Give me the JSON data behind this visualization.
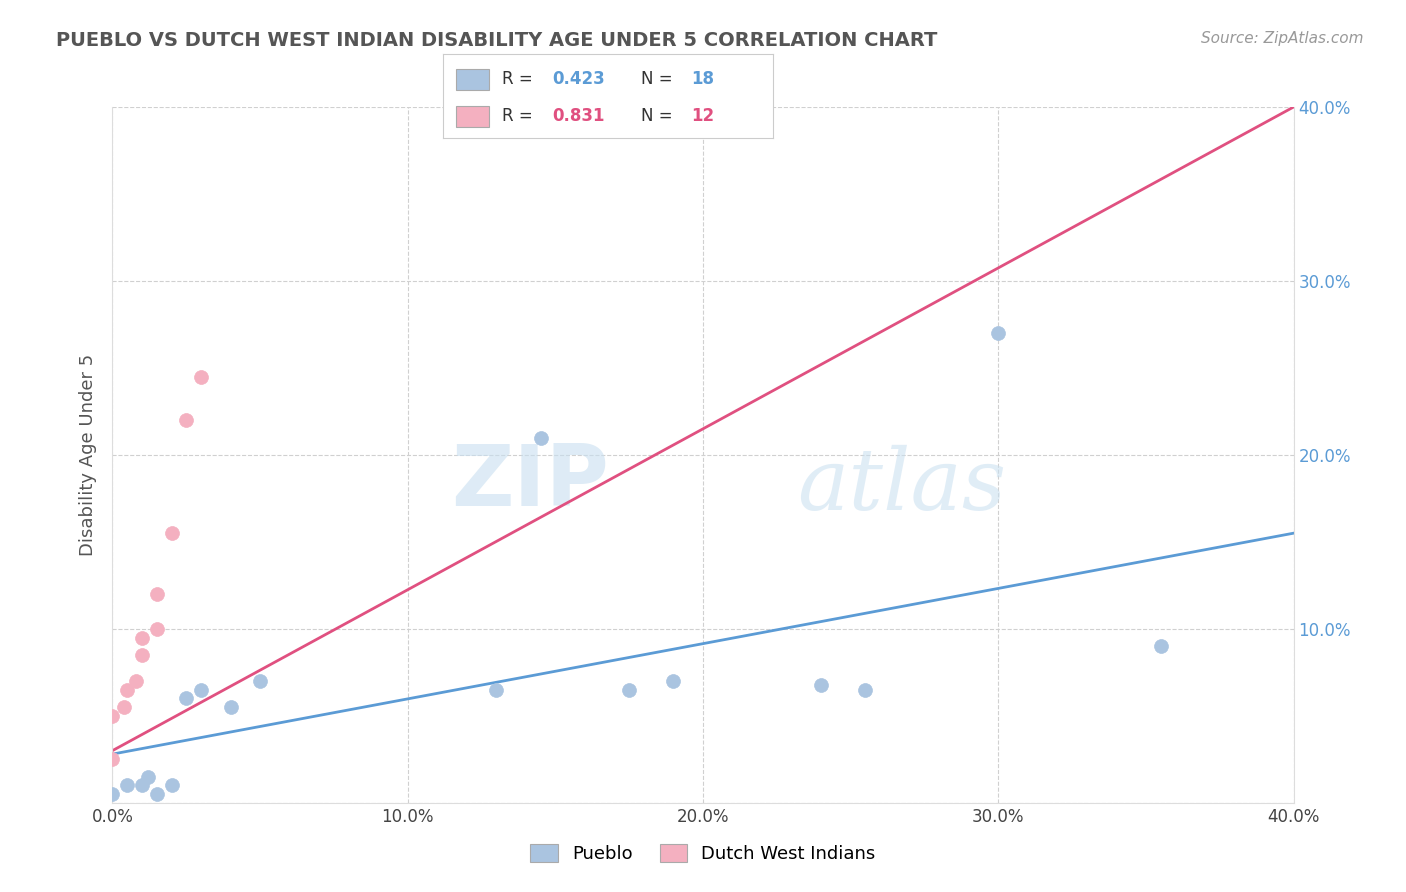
{
  "title": "PUEBLO VS DUTCH WEST INDIAN DISABILITY AGE UNDER 5 CORRELATION CHART",
  "source_text": "Source: ZipAtlas.com",
  "ylabel": "Disability Age Under 5",
  "xlim": [
    0.0,
    0.4
  ],
  "ylim": [
    0.0,
    0.4
  ],
  "xtick_values": [
    0.0,
    0.1,
    0.2,
    0.3,
    0.4
  ],
  "xtick_labels": [
    "0.0%",
    "10.0%",
    "20.0%",
    "30.0%",
    "40.0%"
  ],
  "ytick_values": [
    0.0,
    0.1,
    0.2,
    0.3,
    0.4
  ],
  "ytick_labels": [
    "",
    "",
    "",
    "",
    ""
  ],
  "right_ytick_values": [
    0.1,
    0.2,
    0.3,
    0.4
  ],
  "right_ytick_labels": [
    "10.0%",
    "20.0%",
    "30.0%",
    "40.0%"
  ],
  "pueblo_scatter_x": [
    0.0,
    0.005,
    0.01,
    0.012,
    0.015,
    0.02,
    0.025,
    0.03,
    0.04,
    0.05,
    0.13,
    0.145,
    0.175,
    0.19,
    0.24,
    0.255,
    0.3,
    0.355
  ],
  "pueblo_scatter_y": [
    0.005,
    0.01,
    0.01,
    0.015,
    0.005,
    0.01,
    0.06,
    0.065,
    0.055,
    0.07,
    0.065,
    0.21,
    0.065,
    0.07,
    0.068,
    0.065,
    0.27,
    0.09
  ],
  "dutch_scatter_x": [
    0.0,
    0.0,
    0.004,
    0.005,
    0.008,
    0.01,
    0.01,
    0.015,
    0.015,
    0.02,
    0.025,
    0.03
  ],
  "dutch_scatter_y": [
    0.025,
    0.05,
    0.055,
    0.065,
    0.07,
    0.085,
    0.095,
    0.1,
    0.12,
    0.155,
    0.22,
    0.245
  ],
  "pueblo_R": 0.423,
  "pueblo_N": 18,
  "dutch_R": 0.831,
  "dutch_N": 12,
  "pueblo_color": "#aac4e0",
  "pueblo_line_color": "#5b9bd5",
  "dutch_color": "#f4b0c0",
  "dutch_line_color": "#e05080",
  "pueblo_line_x0": 0.0,
  "pueblo_line_y0": 0.028,
  "pueblo_line_x1": 0.4,
  "pueblo_line_y1": 0.155,
  "dutch_line_x0": 0.0,
  "dutch_line_y0": 0.03,
  "dutch_line_x1": 0.4,
  "dutch_line_y1": 0.4,
  "watermark_zip": "ZIP",
  "watermark_atlas": "atlas",
  "legend_pueblo": "Pueblo",
  "legend_dutch": "Dutch West Indians",
  "background_color": "#ffffff",
  "grid_color": "#d0d0d0"
}
